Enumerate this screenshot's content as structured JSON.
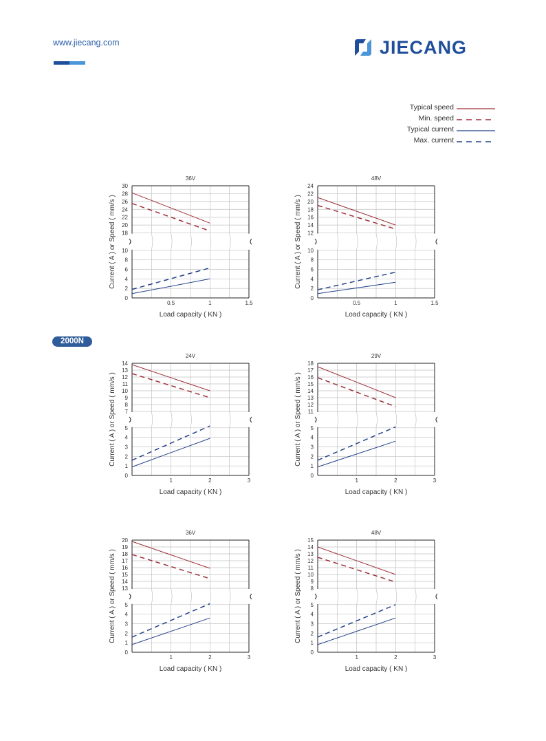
{
  "header": {
    "site_url": "www.jiecang.com",
    "brand_name": "JIECANG",
    "brand_color": "#1f4e9b",
    "logo_icon": "jiecang-logo-icon"
  },
  "legend": {
    "items": [
      {
        "label": "Typical speed",
        "color": "#9e2f38",
        "style": "solid"
      },
      {
        "label": "Min. speed",
        "color": "#9e2f38",
        "style": "dashed"
      },
      {
        "label": "Typical current",
        "color": "#23428a",
        "style": "solid"
      },
      {
        "label": "Max. current",
        "color": "#23428a",
        "style": "dashed"
      }
    ]
  },
  "section": {
    "badge": "2000N"
  },
  "chart_data": [
    {
      "type": "line",
      "title": "36V",
      "xlabel": "Load capacity ( KN )",
      "ylabel": "Current ( A ) or Speed ( mm/s )",
      "xlim": [
        0,
        1.5
      ],
      "xticks": [
        "0.5",
        "1",
        "1.5"
      ],
      "xtick_values": [
        0.5,
        1,
        1.5
      ],
      "ylim_lower": [
        0,
        10
      ],
      "ylim_upper": [
        18,
        30
      ],
      "yticks_lower": [
        "0",
        "2",
        "4",
        "6",
        "8",
        "10"
      ],
      "yticks_upper": [
        "18",
        "20",
        "22",
        "24",
        "26",
        "28",
        "30"
      ],
      "series": [
        {
          "name": "Typical speed",
          "x": [
            0,
            1
          ],
          "y": [
            28.2,
            20.5
          ]
        },
        {
          "name": "Min. speed",
          "x": [
            0,
            1
          ],
          "y": [
            25.5,
            18.5
          ]
        },
        {
          "name": "Typical current",
          "x": [
            0,
            1
          ],
          "y": [
            0.9,
            4.0
          ]
        },
        {
          "name": "Max. current",
          "x": [
            0,
            1
          ],
          "y": [
            1.8,
            6.3
          ]
        }
      ]
    },
    {
      "type": "line",
      "title": "48V",
      "xlabel": "Load capacity ( KN )",
      "ylabel": "Current ( A ) or Speed ( mm/s )",
      "xlim": [
        0,
        1.5
      ],
      "xticks": [
        "0.5",
        "1",
        "1.5"
      ],
      "xtick_values": [
        0.5,
        1,
        1.5
      ],
      "ylim_lower": [
        0,
        10
      ],
      "ylim_upper": [
        12,
        24
      ],
      "yticks_lower": [
        "0",
        "2",
        "4",
        "6",
        "8",
        "10"
      ],
      "yticks_upper": [
        "12",
        "14",
        "16",
        "18",
        "20",
        "22",
        "24"
      ],
      "series": [
        {
          "name": "Typical speed",
          "x": [
            0,
            1
          ],
          "y": [
            21.0,
            14.0
          ]
        },
        {
          "name": "Min. speed",
          "x": [
            0,
            1
          ],
          "y": [
            19.0,
            13.0
          ]
        },
        {
          "name": "Typical current",
          "x": [
            0,
            1
          ],
          "y": [
            0.9,
            3.3
          ]
        },
        {
          "name": "Max. current",
          "x": [
            0,
            1
          ],
          "y": [
            1.7,
            5.4
          ]
        }
      ]
    },
    {
      "type": "line",
      "title": "24V",
      "xlabel": "Load capacity ( KN )",
      "ylabel": "Current ( A ) or Speed ( mm/s )",
      "xlim": [
        0,
        3
      ],
      "xticks": [
        "1",
        "2",
        "3"
      ],
      "xtick_values": [
        1,
        2,
        3
      ],
      "ylim_lower": [
        0,
        5
      ],
      "ylim_upper": [
        7,
        14
      ],
      "yticks_lower": [
        "0",
        "1",
        "2",
        "3",
        "4",
        "5"
      ],
      "yticks_upper": [
        "7",
        "8",
        "9",
        "10",
        "11",
        "12",
        "13",
        "14"
      ],
      "series": [
        {
          "name": "Typical speed",
          "x": [
            0,
            2
          ],
          "y": [
            13.8,
            10.0
          ]
        },
        {
          "name": "Min. speed",
          "x": [
            0,
            2
          ],
          "y": [
            12.5,
            9.0
          ]
        },
        {
          "name": "Typical current",
          "x": [
            0,
            2
          ],
          "y": [
            0.9,
            3.9
          ]
        },
        {
          "name": "Max. current",
          "x": [
            0,
            2
          ],
          "y": [
            1.6,
            5.2
          ]
        }
      ]
    },
    {
      "type": "line",
      "title": "29V",
      "xlabel": "Load capacity ( KN )",
      "ylabel": "Current ( A ) or Speed ( mm/s )",
      "xlim": [
        0,
        3
      ],
      "xticks": [
        "1",
        "2",
        "3"
      ],
      "xtick_values": [
        1,
        2,
        3
      ],
      "ylim_lower": [
        0,
        5
      ],
      "ylim_upper": [
        11,
        18
      ],
      "yticks_lower": [
        "0",
        "1",
        "2",
        "3",
        "4",
        "5"
      ],
      "yticks_upper": [
        "11",
        "12",
        "13",
        "14",
        "15",
        "16",
        "17",
        "18"
      ],
      "series": [
        {
          "name": "Typical speed",
          "x": [
            0,
            2
          ],
          "y": [
            17.5,
            13.0
          ]
        },
        {
          "name": "Min. speed",
          "x": [
            0,
            2
          ],
          "y": [
            15.9,
            11.7
          ]
        },
        {
          "name": "Typical current",
          "x": [
            0,
            2
          ],
          "y": [
            0.9,
            3.6
          ]
        },
        {
          "name": "Max. current",
          "x": [
            0,
            2
          ],
          "y": [
            1.6,
            5.1
          ]
        }
      ]
    },
    {
      "type": "line",
      "title": "36V",
      "xlabel": "Load capacity ( KN )",
      "ylabel": "Current ( A ) or Speed ( mm/s )",
      "xlim": [
        0,
        3
      ],
      "xticks": [
        "1",
        "2",
        "3"
      ],
      "xtick_values": [
        1,
        2,
        3
      ],
      "ylim_lower": [
        0,
        5
      ],
      "ylim_upper": [
        13,
        20
      ],
      "yticks_lower": [
        "0",
        "1",
        "2",
        "3",
        "4",
        "5"
      ],
      "yticks_upper": [
        "13",
        "14",
        "15",
        "16",
        "17",
        "18",
        "19",
        "20"
      ],
      "series": [
        {
          "name": "Typical speed",
          "x": [
            0,
            2
          ],
          "y": [
            19.8,
            15.9
          ]
        },
        {
          "name": "Min. speed",
          "x": [
            0,
            2
          ],
          "y": [
            17.9,
            14.4
          ]
        },
        {
          "name": "Typical current",
          "x": [
            0,
            2
          ],
          "y": [
            0.8,
            3.6
          ]
        },
        {
          "name": "Max. current",
          "x": [
            0,
            2
          ],
          "y": [
            1.6,
            5.1
          ]
        }
      ]
    },
    {
      "type": "line",
      "title": "48V",
      "xlabel": "Load capacity ( KN )",
      "ylabel": "Current ( A ) or Speed ( mm/s )",
      "xlim": [
        0,
        3
      ],
      "xticks": [
        "1",
        "2",
        "3"
      ],
      "xtick_values": [
        1,
        2,
        3
      ],
      "ylim_lower": [
        0,
        5
      ],
      "ylim_upper": [
        8,
        15
      ],
      "yticks_lower": [
        "0",
        "1",
        "2",
        "3",
        "4",
        "5"
      ],
      "yticks_upper": [
        "8",
        "9",
        "10",
        "11",
        "12",
        "13",
        "14",
        "15"
      ],
      "series": [
        {
          "name": "Typical speed",
          "x": [
            0,
            2
          ],
          "y": [
            14.0,
            10.0
          ]
        },
        {
          "name": "Min. speed",
          "x": [
            0,
            2
          ],
          "y": [
            12.5,
            8.9
          ]
        },
        {
          "name": "Typical current",
          "x": [
            0,
            2
          ],
          "y": [
            0.8,
            3.6
          ]
        },
        {
          "name": "Max. current",
          "x": [
            0,
            2
          ],
          "y": [
            1.6,
            5.0
          ]
        }
      ]
    }
  ]
}
